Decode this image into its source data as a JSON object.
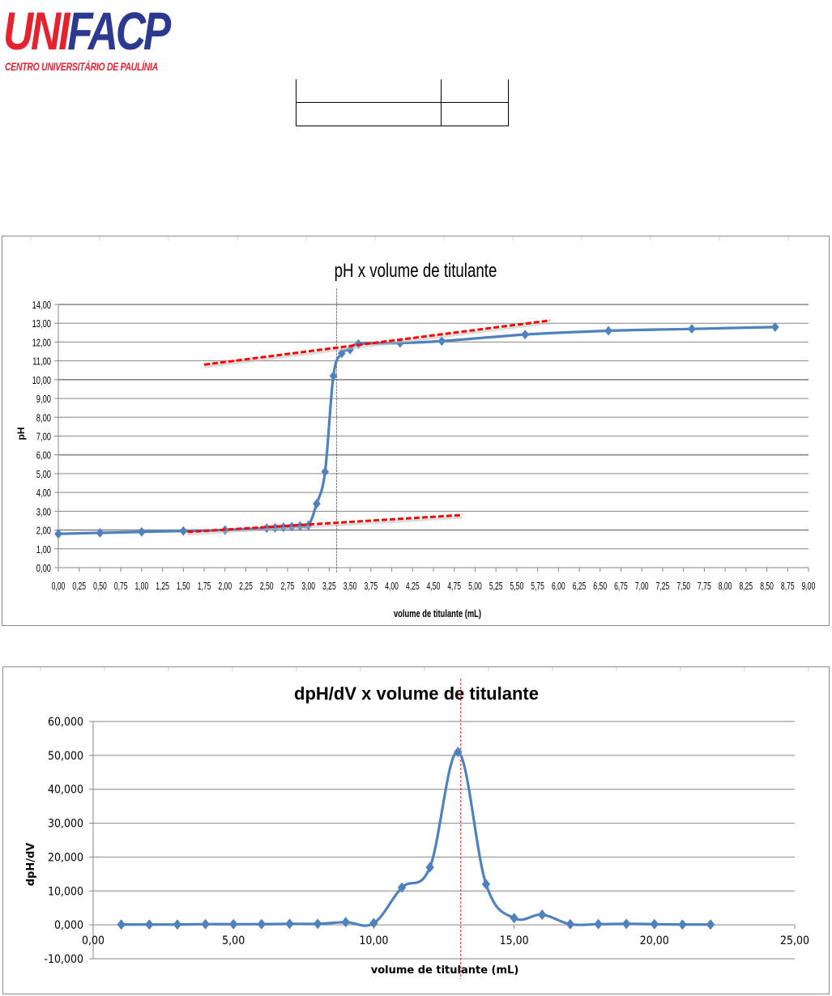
{
  "header": {
    "logo": {
      "main_red": "UNI",
      "main_blue": "FACP",
      "subtitle": "CENTRO UNIVERSITÁRIO DE PAULÍNIA"
    }
  },
  "colors": {
    "series": "#4f81bd",
    "tangent": "#ff0000",
    "equivalence_line": "#e0201a",
    "grid": "#868686",
    "logo_red": "#e52330",
    "logo_blue": "#2b3990"
  },
  "chart_data": [
    {
      "type": "line",
      "title": "pH x volume de titulante",
      "xlabel": "volume de titulante (mL)",
      "ylabel": "pH",
      "xlim": [
        0,
        9
      ],
      "ylim": [
        0,
        14
      ],
      "grid": true,
      "legend": "none",
      "x_tick_labels": [
        "0,00",
        "0,25",
        "0,50",
        "0,75",
        "1,00",
        "1,25",
        "1,50",
        "1,75",
        "2,00",
        "2,25",
        "2,50",
        "2,75",
        "3,00",
        "3,25",
        "3,50",
        "3,75",
        "4,00",
        "4,25",
        "4,50",
        "4,75",
        "5,00",
        "5,25",
        "5,50",
        "5,75",
        "6,00",
        "6,25",
        "6,50",
        "6,75",
        "7,00",
        "7,25",
        "7,50",
        "7,75",
        "8,00",
        "8,25",
        "8,50",
        "8,75",
        "9,00"
      ],
      "y_tick_labels": [
        "0,00",
        "1,00",
        "2,00",
        "3,00",
        "4,00",
        "5,00",
        "6,00",
        "7,00",
        "8,00",
        "9,00",
        "10,00",
        "11,00",
        "12,00",
        "13,00",
        "14,00"
      ],
      "series": [
        {
          "name": "pH",
          "x": [
            0.0,
            0.5,
            1.0,
            1.5,
            2.0,
            2.5,
            2.6,
            2.7,
            2.8,
            2.9,
            3.0,
            3.1,
            3.2,
            3.3,
            3.4,
            3.5,
            3.6,
            4.1,
            4.6,
            5.6,
            6.6,
            7.6,
            8.6
          ],
          "y": [
            1.8,
            1.85,
            1.9,
            1.95,
            2.0,
            2.1,
            2.12,
            2.15,
            2.18,
            2.22,
            2.25,
            3.4,
            5.1,
            10.2,
            11.4,
            11.6,
            11.9,
            11.95,
            12.05,
            12.4,
            12.6,
            12.7,
            12.8
          ]
        }
      ],
      "annotations": {
        "tangent_lines": [
          {
            "from": [
              1.55,
              1.9
            ],
            "to": [
              4.85,
              2.8
            ]
          },
          {
            "from": [
              1.75,
              10.8
            ],
            "to": [
              5.9,
              13.15
            ]
          }
        ],
        "equivalence_vertical_line_x": 3.34
      }
    },
    {
      "type": "line",
      "title": "dpH/dV x volume de titulante",
      "xlabel": "volume de titulante (mL)",
      "ylabel": "dpH/dV",
      "xlim": [
        0,
        25
      ],
      "ylim": [
        -10,
        60
      ],
      "grid": true,
      "legend": "none",
      "x_tick_labels": [
        "0,00",
        "5,00",
        "10,00",
        "15,00",
        "20,00",
        "25,00"
      ],
      "y_tick_labels": [
        "-10,000",
        "0,000",
        "10,000",
        "20,000",
        "30,000",
        "40,000",
        "50,000",
        "60,000"
      ],
      "series": [
        {
          "name": "dpH/dV",
          "x": [
            1,
            2,
            3,
            4,
            5,
            6,
            7,
            8,
            9,
            10,
            11,
            12,
            13,
            14,
            15,
            16,
            17,
            18,
            19,
            20,
            21,
            22
          ],
          "y": [
            0.1,
            0.1,
            0.1,
            0.2,
            0.2,
            0.2,
            0.3,
            0.3,
            0.8,
            0.5,
            11.0,
            17.0,
            51.0,
            12.0,
            2.0,
            3.0,
            0.2,
            0.2,
            0.3,
            0.2,
            0.1,
            0.1
          ]
        }
      ],
      "annotations": {
        "equivalence_vertical_line_x": 13.1
      }
    }
  ]
}
